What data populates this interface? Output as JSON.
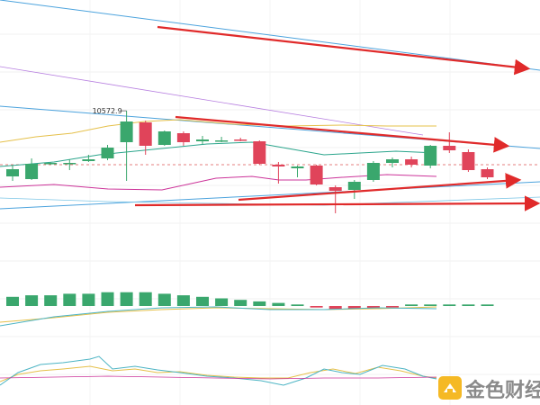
{
  "chart_data": [
    {
      "panel": "price",
      "type": "candlestick",
      "y_scale": [
        10450,
        10600
      ],
      "high_label": "10572.9",
      "candles": [
        {
          "o": 10500,
          "h": 10512,
          "l": 10495,
          "c": 10508
        },
        {
          "o": 10497,
          "h": 10520,
          "l": 10496,
          "c": 10514
        },
        {
          "o": 10515,
          "h": 10516,
          "l": 10513,
          "c": 10515
        },
        {
          "o": 10514,
          "h": 10519,
          "l": 10507,
          "c": 10515
        },
        {
          "o": 10517,
          "h": 10524,
          "l": 10516,
          "c": 10519
        },
        {
          "o": 10520,
          "h": 10535,
          "l": 10518,
          "c": 10532
        },
        {
          "o": 10538,
          "h": 10572.9,
          "l": 10495,
          "c": 10561
        },
        {
          "o": 10560,
          "h": 10562,
          "l": 10524,
          "c": 10534
        },
        {
          "o": 10535,
          "h": 10551,
          "l": 10534,
          "c": 10550
        },
        {
          "o": 10548,
          "h": 10550,
          "l": 10534,
          "c": 10538
        },
        {
          "o": 10539,
          "h": 10545,
          "l": 10536,
          "c": 10541
        },
        {
          "o": 10540,
          "h": 10544,
          "l": 10538,
          "c": 10540
        },
        {
          "o": 10541,
          "h": 10543,
          "l": 10539,
          "c": 10540
        },
        {
          "o": 10539,
          "h": 10540,
          "l": 10513,
          "c": 10514
        },
        {
          "o": 10513,
          "h": 10516,
          "l": 10492,
          "c": 10511
        },
        {
          "o": 10509,
          "h": 10512,
          "l": 10499,
          "c": 10511
        },
        {
          "o": 10512,
          "h": 10513,
          "l": 10490,
          "c": 10491
        },
        {
          "o": 10488,
          "h": 10490,
          "l": 10459,
          "c": 10484
        },
        {
          "o": 10485,
          "h": 10496,
          "l": 10475,
          "c": 10494
        },
        {
          "o": 10496,
          "h": 10517,
          "l": 10494,
          "c": 10515
        },
        {
          "o": 10515,
          "h": 10521,
          "l": 10510,
          "c": 10519
        },
        {
          "o": 10519,
          "h": 10522,
          "l": 10510,
          "c": 10513
        },
        {
          "o": 10512,
          "h": 10535,
          "l": 10509,
          "c": 10534
        },
        {
          "o": 10534,
          "h": 10549,
          "l": 10526,
          "c": 10529
        },
        {
          "o": 10527,
          "h": 10530,
          "l": 10505,
          "c": 10507
        },
        {
          "o": 10508,
          "h": 10510,
          "l": 10497,
          "c": 10499
        }
      ],
      "colors": {
        "up": "#3aa76d",
        "down": "#e0445a",
        "ma_short": "#e5c04a",
        "ma_long": "#2ba58c",
        "band_lower": "#cc3399",
        "channel": "#4ca3dd",
        "trend": "#b77fe0",
        "arrow": "#e02a2a"
      }
    },
    {
      "panel": "macd",
      "type": "bar",
      "values": [
        6,
        7,
        7,
        8,
        8,
        9,
        9,
        9,
        8,
        7,
        6,
        5,
        4,
        3,
        2,
        1,
        -1,
        -2,
        -2,
        -2,
        -1,
        1,
        1,
        1,
        1,
        1
      ],
      "colors": {
        "up": "#3aa76d",
        "down": "#e0445a"
      }
    },
    {
      "panel": "oscillator",
      "type": "line",
      "colors": [
        "#e5c04a",
        "#4cb4c4",
        "#cc3399"
      ]
    }
  ],
  "watermark": {
    "text": "金色财经",
    "icon": "jinse-logo-icon"
  }
}
